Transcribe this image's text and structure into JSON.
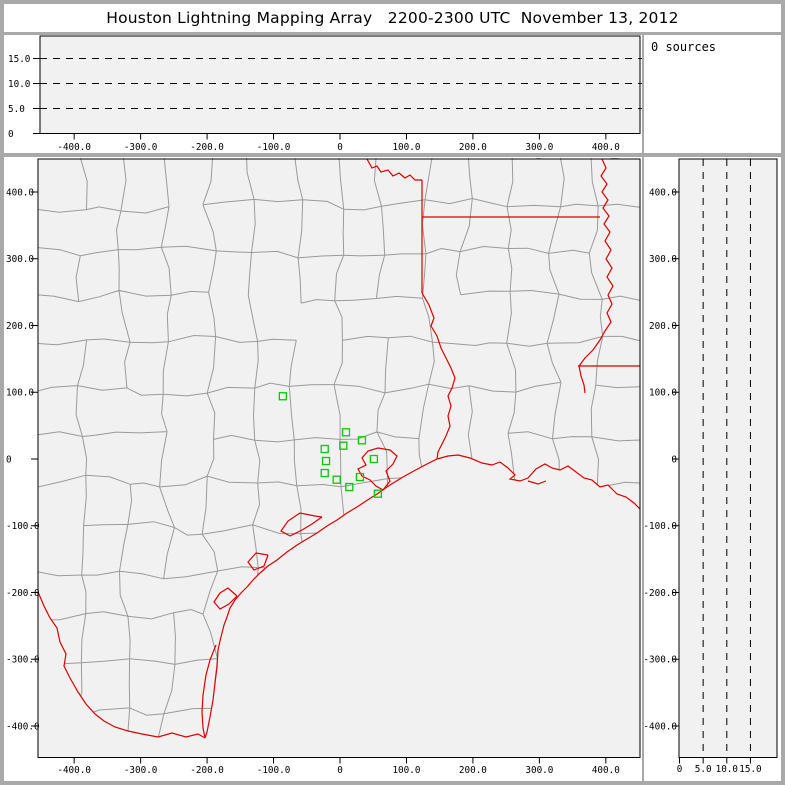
{
  "title": "Houston Lightning Mapping Array   2200-2300 UTC  November 13, 2012",
  "sources_panel": {
    "text": "0 sources"
  },
  "colors": {
    "frame": "#a9a9a9",
    "panel_bg": "#ffffff",
    "plot_bg": "#f1f1f1",
    "county_line": "#9a9a9a",
    "state_line": "#dd0000",
    "station": "#00cc00",
    "axis": "#000000",
    "title_text": "#000000"
  },
  "axes": {
    "ew": {
      "tick_labels": [
        "-400.0",
        "-300.0",
        "-200.0",
        "-100.0",
        "0",
        "100.0",
        "200.0",
        "300.0",
        "400.0"
      ],
      "tick_values": [
        -400,
        -300,
        -200,
        -100,
        0,
        100,
        200,
        300,
        400
      ],
      "units": "km"
    },
    "ns": {
      "tick_labels": [
        "400.0",
        "300.0",
        "200.0",
        "100.0",
        "0",
        "-100.0",
        "-200.0",
        "-300.0",
        "-400.0"
      ],
      "tick_values": [
        400,
        300,
        200,
        100,
        0,
        -100,
        -200,
        -300,
        -400
      ],
      "units": "km"
    },
    "alt": {
      "tick_labels": [
        "0",
        "5.0",
        "10.0",
        "15.0"
      ],
      "tick_values": [
        0,
        5,
        10,
        15
      ],
      "dashed_values": [
        5,
        10,
        15
      ],
      "units": "km"
    }
  },
  "chart_data": [
    {
      "id": "altitude_vs_ew",
      "type": "scatter",
      "x_axis": "ew",
      "y_axis": "alt",
      "xlim": [
        -451,
        451
      ],
      "ylim": [
        0,
        19.5
      ],
      "grid": "dashed horizontal lines at 5, 10, 15 km",
      "points": [],
      "note": "empty - 0 sources in selected time window"
    },
    {
      "id": "plan_view_map",
      "type": "scatter",
      "x_axis": "ew",
      "y_axis": "ns",
      "xlim": [
        -454,
        451
      ],
      "ylim": [
        -449,
        449
      ],
      "layers": [
        "county boundaries",
        "state boundaries and coastline",
        "LMA station markers"
      ],
      "series": [
        {
          "name": "lma_stations",
          "marker": "open-square",
          "color": "#00cc00",
          "points_km": [
            [
              -86,
              94
            ],
            [
              9,
              40
            ],
            [
              33,
              28
            ],
            [
              5,
              20
            ],
            [
              -23,
              15
            ],
            [
              -21,
              -3
            ],
            [
              51,
              0
            ],
            [
              -23,
              -21
            ],
            [
              -5,
              -31
            ],
            [
              30,
              -27
            ],
            [
              14,
              -42
            ],
            [
              57,
              -52
            ]
          ]
        }
      ]
    },
    {
      "id": "ns_vs_altitude",
      "type": "scatter",
      "x_axis": "alt",
      "y_axis": "ns",
      "xlim": [
        0,
        20.6
      ],
      "ylim": [
        -449,
        449
      ],
      "grid": "dashed vertical lines at 5, 10, 15 km",
      "points": [],
      "note": "empty - 0 sources in selected time window"
    }
  ]
}
